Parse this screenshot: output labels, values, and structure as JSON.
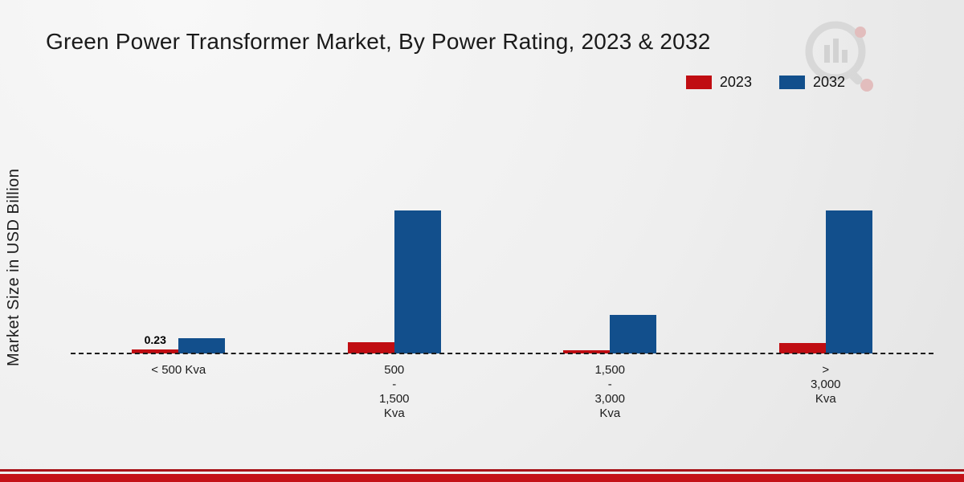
{
  "title": "Green Power Transformer Market, By Power Rating, 2023 & 2032",
  "ylabel": "Market Size in USD Billion",
  "colors": {
    "series_2023": "#c00d12",
    "series_2032": "#124f8c",
    "baseline": "#1b1b1b",
    "bottom_band": "#c41218"
  },
  "legend": [
    {
      "label": "2023",
      "color": "#c00d12"
    },
    {
      "label": "2032",
      "color": "#124f8c"
    }
  ],
  "chart_data": {
    "type": "bar",
    "title": "Green Power Transformer Market, By Power Rating, 2023 & 2032",
    "xlabel": "",
    "ylabel": "Market Size in USD Billion",
    "ylim": [
      0,
      8
    ],
    "grid": false,
    "legend_position": "top-right",
    "categories": [
      "< 500 Kva",
      "500 - 1,500 Kva",
      "1,500 - 3,000 Kva",
      "> 3,000 Kva"
    ],
    "category_label_lines": [
      [
        "< 500 Kva"
      ],
      [
        "500",
        "-",
        "1,500",
        "Kva"
      ],
      [
        "1,500",
        "-",
        "3,000",
        "Kva"
      ],
      [
        ">",
        "3,000",
        "Kva"
      ]
    ],
    "series": [
      {
        "name": "2023",
        "color": "#c00d12",
        "values": [
          0.23,
          0.6,
          0.17,
          0.55
        ]
      },
      {
        "name": "2032",
        "color": "#124f8c",
        "values": [
          0.8,
          7.5,
          2.0,
          7.5
        ]
      }
    ],
    "annotations": [
      {
        "series": "2023",
        "category_index": 0,
        "text": "0.23"
      }
    ]
  }
}
